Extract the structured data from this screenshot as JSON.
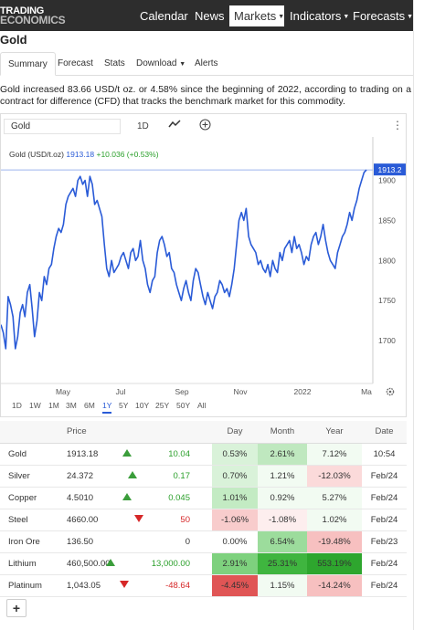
{
  "header": {
    "logo_line1": "TRADING",
    "logo_line2": "ECONOMICS",
    "nav": [
      {
        "label": "Calendar",
        "caret": false
      },
      {
        "label": "News",
        "caret": false
      },
      {
        "label": "Markets",
        "caret": true,
        "active": true
      },
      {
        "label": "Indicators",
        "caret": true
      },
      {
        "label": "Forecasts",
        "caret": true
      }
    ]
  },
  "page_title": "Gold",
  "tabs": [
    "Summary",
    "Forecast",
    "Stats",
    "Download",
    "Alerts"
  ],
  "description": "Gold increased 83.66 USD/t oz. or 4.58% since the beginning of 2022, according to trading on a contract for difference (CFD) that tracks the benchmark market for this commodity.",
  "chart_controls": {
    "symbol_value": "Gold",
    "interval": "1D",
    "menu_icon": "kebab-icon",
    "chart_type_icon": "line-chart-icon",
    "add_icon": "plus-circle-icon",
    "settings_icon": "gear-icon"
  },
  "legend": {
    "name": "Gold (USD/t.oz)",
    "value": "1913.18",
    "change": "+10.036 (+0.53%)"
  },
  "ranges": [
    "1D",
    "1W",
    "1M",
    "3M",
    "6M",
    "1Y",
    "5Y",
    "10Y",
    "25Y",
    "50Y",
    "All"
  ],
  "selected_range": "1Y",
  "colors": {
    "line": "#2a5bd7",
    "positive": "#2ca02c",
    "negative": "#d62728",
    "nav_bg": "#2d2d2d"
  },
  "chart_data": {
    "type": "line",
    "series_name": "Gold (USD/t.oz)",
    "last_value_label": "1913.2",
    "ylim": [
      1650,
      1920
    ],
    "y_ticks": [
      1700,
      1750,
      1800,
      1850,
      1900
    ],
    "x_ticks": [
      "May",
      "Jul",
      "Sep",
      "Nov",
      "2022",
      "Ma"
    ],
    "grid": false,
    "points": [
      [
        0,
        1720
      ],
      [
        1,
        1710
      ],
      [
        2,
        1690
      ],
      [
        3,
        1755
      ],
      [
        4,
        1745
      ],
      [
        5,
        1730
      ],
      [
        6,
        1690
      ],
      [
        7,
        1705
      ],
      [
        8,
        1735
      ],
      [
        9,
        1745
      ],
      [
        10,
        1730
      ],
      [
        11,
        1760
      ],
      [
        12,
        1770
      ],
      [
        13,
        1740
      ],
      [
        14,
        1705
      ],
      [
        15,
        1725
      ],
      [
        16,
        1760
      ],
      [
        17,
        1750
      ],
      [
        18,
        1780
      ],
      [
        19,
        1770
      ],
      [
        20,
        1790
      ],
      [
        21,
        1795
      ],
      [
        22,
        1815
      ],
      [
        23,
        1830
      ],
      [
        24,
        1840
      ],
      [
        25,
        1835
      ],
      [
        26,
        1845
      ],
      [
        27,
        1870
      ],
      [
        28,
        1880
      ],
      [
        29,
        1885
      ],
      [
        30,
        1890
      ],
      [
        31,
        1880
      ],
      [
        32,
        1900
      ],
      [
        33,
        1905
      ],
      [
        34,
        1895
      ],
      [
        35,
        1900
      ],
      [
        36,
        1880
      ],
      [
        37,
        1905
      ],
      [
        38,
        1895
      ],
      [
        39,
        1870
      ],
      [
        40,
        1875
      ],
      [
        41,
        1865
      ],
      [
        42,
        1855
      ],
      [
        43,
        1820
      ],
      [
        44,
        1790
      ],
      [
        45,
        1780
      ],
      [
        46,
        1800
      ],
      [
        47,
        1785
      ],
      [
        48,
        1790
      ],
      [
        49,
        1795
      ],
      [
        50,
        1805
      ],
      [
        51,
        1810
      ],
      [
        52,
        1800
      ],
      [
        53,
        1790
      ],
      [
        54,
        1810
      ],
      [
        55,
        1815
      ],
      [
        56,
        1800
      ],
      [
        57,
        1805
      ],
      [
        58,
        1825
      ],
      [
        59,
        1800
      ],
      [
        60,
        1790
      ],
      [
        61,
        1770
      ],
      [
        62,
        1760
      ],
      [
        63,
        1775
      ],
      [
        64,
        1780
      ],
      [
        65,
        1810
      ],
      [
        66,
        1825
      ],
      [
        67,
        1830
      ],
      [
        68,
        1820
      ],
      [
        69,
        1805
      ],
      [
        70,
        1810
      ],
      [
        71,
        1790
      ],
      [
        72,
        1785
      ],
      [
        73,
        1770
      ],
      [
        74,
        1760
      ],
      [
        75,
        1750
      ],
      [
        76,
        1765
      ],
      [
        77,
        1775
      ],
      [
        78,
        1760
      ],
      [
        79,
        1750
      ],
      [
        80,
        1775
      ],
      [
        81,
        1790
      ],
      [
        82,
        1785
      ],
      [
        83,
        1770
      ],
      [
        84,
        1755
      ],
      [
        85,
        1745
      ],
      [
        86,
        1760
      ],
      [
        87,
        1750
      ],
      [
        88,
        1740
      ],
      [
        89,
        1755
      ],
      [
        90,
        1760
      ],
      [
        91,
        1775
      ],
      [
        92,
        1770
      ],
      [
        93,
        1760
      ],
      [
        94,
        1765
      ],
      [
        95,
        1755
      ],
      [
        96,
        1770
      ],
      [
        97,
        1790
      ],
      [
        98,
        1820
      ],
      [
        99,
        1850
      ],
      [
        100,
        1860
      ],
      [
        101,
        1850
      ],
      [
        102,
        1865
      ],
      [
        103,
        1830
      ],
      [
        104,
        1820
      ],
      [
        105,
        1815
      ],
      [
        106,
        1810
      ],
      [
        107,
        1795
      ],
      [
        108,
        1800
      ],
      [
        109,
        1790
      ],
      [
        110,
        1785
      ],
      [
        111,
        1795
      ],
      [
        112,
        1780
      ],
      [
        113,
        1800
      ],
      [
        114,
        1790
      ],
      [
        115,
        1785
      ],
      [
        116,
        1810
      ],
      [
        117,
        1800
      ],
      [
        118,
        1815
      ],
      [
        119,
        1820
      ],
      [
        120,
        1825
      ],
      [
        121,
        1810
      ],
      [
        122,
        1830
      ],
      [
        123,
        1815
      ],
      [
        124,
        1820
      ],
      [
        125,
        1810
      ],
      [
        126,
        1795
      ],
      [
        127,
        1805
      ],
      [
        128,
        1800
      ],
      [
        129,
        1820
      ],
      [
        130,
        1830
      ],
      [
        131,
        1835
      ],
      [
        132,
        1820
      ],
      [
        133,
        1830
      ],
      [
        134,
        1845
      ],
      [
        135,
        1825
      ],
      [
        136,
        1810
      ],
      [
        137,
        1800
      ],
      [
        138,
        1795
      ],
      [
        139,
        1790
      ],
      [
        140,
        1810
      ],
      [
        141,
        1820
      ],
      [
        142,
        1830
      ],
      [
        143,
        1835
      ],
      [
        144,
        1845
      ],
      [
        145,
        1860
      ],
      [
        146,
        1850
      ],
      [
        147,
        1865
      ],
      [
        148,
        1875
      ],
      [
        149,
        1890
      ],
      [
        150,
        1900
      ],
      [
        151,
        1910
      ],
      [
        152,
        1913
      ]
    ]
  },
  "table": {
    "headers": [
      "",
      "Price",
      "",
      "Day",
      "Month",
      "Year",
      "Date"
    ],
    "rows": [
      {
        "name": "Gold",
        "price": "1913.18",
        "dir": "up",
        "chg": "10.04",
        "day": "0.53%",
        "month": "2.61%",
        "year": "7.12%",
        "date": "10:54",
        "dayBg": "#d9f2d9",
        "monthBg": "#bfe8bf",
        "yearBg": "#f2fbf2"
      },
      {
        "name": "Silver",
        "price": "24.372",
        "dir": "up",
        "chg": "0.17",
        "day": "0.70%",
        "month": "1.21%",
        "year": "-12.03%",
        "date": "Feb/24",
        "dayBg": "#d9f2d9",
        "monthBg": "#f2fbf2",
        "yearBg": "#fbdada"
      },
      {
        "name": "Copper",
        "price": "4.5010",
        "dir": "up",
        "chg": "0.045",
        "day": "1.01%",
        "month": "0.92%",
        "year": "5.27%",
        "date": "Feb/24",
        "dayBg": "#c3ebc3",
        "monthBg": "#f2fbf2",
        "yearBg": "#f2fbf2"
      },
      {
        "name": "Steel",
        "price": "4660.00",
        "dir": "down",
        "chg": "50",
        "day": "-1.06%",
        "month": "-1.08%",
        "year": "1.02%",
        "date": "Feb/24",
        "dayBg": "#f8cccc",
        "monthBg": "#fdeeee",
        "yearBg": "#f2fbf2"
      },
      {
        "name": "Iron Ore",
        "price": "136.50",
        "dir": "",
        "chg": "0",
        "day": "0.00%",
        "month": "6.54%",
        "year": "-19.48%",
        "date": "Feb/23",
        "dayBg": "#ffffff",
        "monthBg": "#9cdc9c",
        "yearBg": "#f7c0c0"
      },
      {
        "name": "Lithium",
        "price": "460,500.00",
        "dir": "up",
        "chg": "13,000.00",
        "day": "2.91%",
        "month": "25.31%",
        "year": "553.19%",
        "date": "Feb/24",
        "dayBg": "#7ed17e",
        "monthBg": "#3fb53f",
        "yearBg": "#2ea62e"
      },
      {
        "name": "Platinum",
        "price": "1,043.05",
        "dir": "down",
        "chg": "-48.64",
        "day": "-4.45%",
        "month": "1.15%",
        "year": "-14.24%",
        "date": "Feb/24",
        "dayBg": "#e05555",
        "monthBg": "#f2fbf2",
        "yearBg": "#f7c0c0"
      }
    ]
  },
  "add_button_label": "+"
}
